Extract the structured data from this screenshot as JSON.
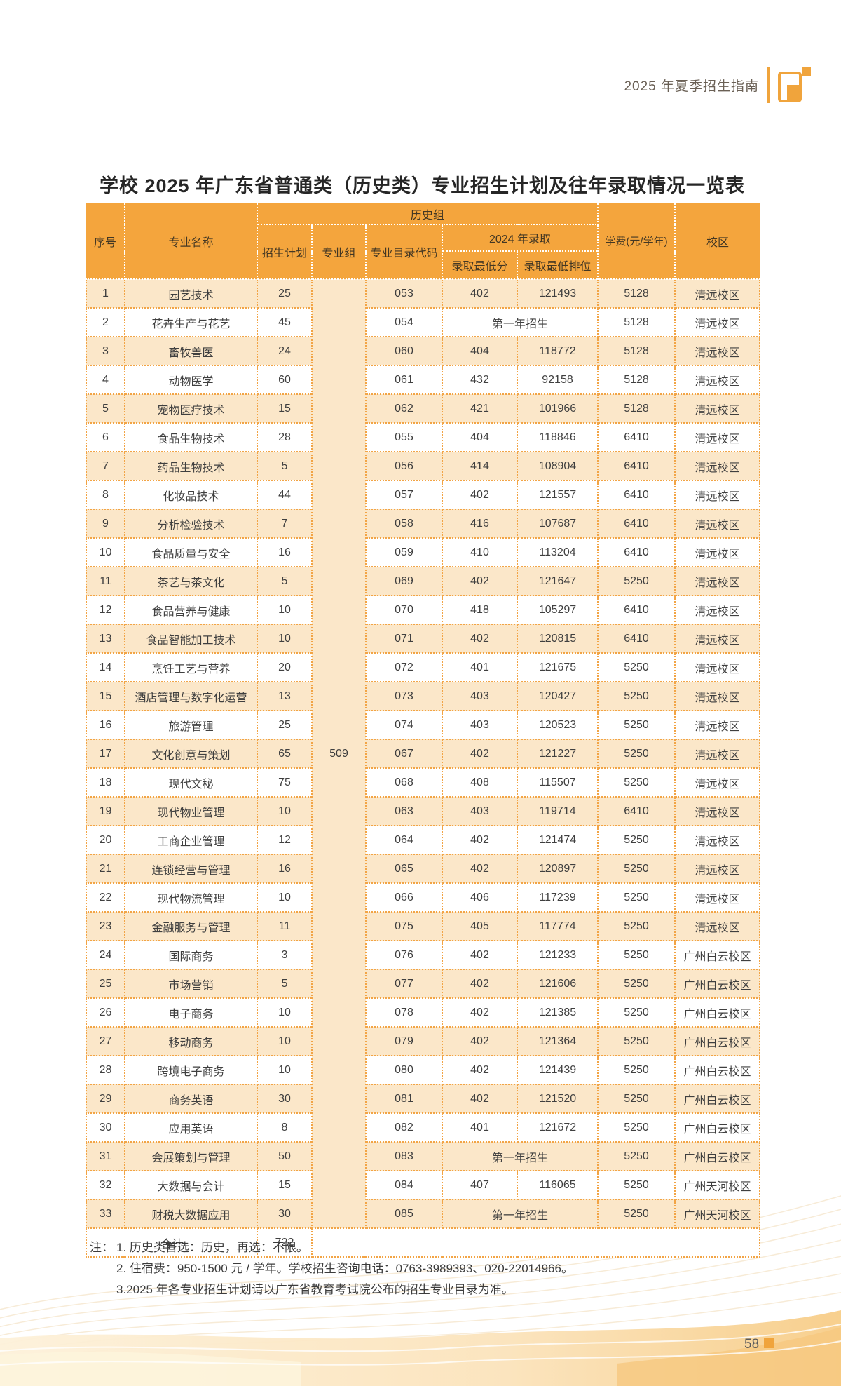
{
  "page_header": {
    "guide_label": "2025 年夏季招生指南"
  },
  "title": "学校 2025 年广东省普通类（历史类）专业招生计划及往年录取情况一览表",
  "colors": {
    "accent_orange": "#F4A53D",
    "row_cream": "#FBE7C9",
    "border_orange": "#F2A445"
  },
  "table": {
    "headers": {
      "no": "序号",
      "major": "专业名称",
      "group": "历史组",
      "plan": "招生计划",
      "major_group": "专业组",
      "catalog_code": "专业目录代码",
      "admission_2024": "2024 年录取",
      "min_score": "录取最低分",
      "min_rank": "录取最低排位",
      "tuition": "学费(元/学年)",
      "campus": "校区"
    },
    "major_group_value": "509",
    "rows": [
      {
        "no": "1",
        "major": "园艺技术",
        "plan": "25",
        "code": "053",
        "score": "402",
        "rank": "121493",
        "tuition": "5128",
        "campus": "清远校区"
      },
      {
        "no": "2",
        "major": "花卉生产与花艺",
        "plan": "45",
        "code": "054",
        "score": "第一年招生",
        "rank": "",
        "first_year": true,
        "tuition": "5128",
        "campus": "清远校区"
      },
      {
        "no": "3",
        "major": "畜牧兽医",
        "plan": "24",
        "code": "060",
        "score": "404",
        "rank": "118772",
        "tuition": "5128",
        "campus": "清远校区"
      },
      {
        "no": "4",
        "major": "动物医学",
        "plan": "60",
        "code": "061",
        "score": "432",
        "rank": "92158",
        "tuition": "5128",
        "campus": "清远校区"
      },
      {
        "no": "5",
        "major": "宠物医疗技术",
        "plan": "15",
        "code": "062",
        "score": "421",
        "rank": "101966",
        "tuition": "5128",
        "campus": "清远校区"
      },
      {
        "no": "6",
        "major": "食品生物技术",
        "plan": "28",
        "code": "055",
        "score": "404",
        "rank": "118846",
        "tuition": "6410",
        "campus": "清远校区"
      },
      {
        "no": "7",
        "major": "药品生物技术",
        "plan": "5",
        "code": "056",
        "score": "414",
        "rank": "108904",
        "tuition": "6410",
        "campus": "清远校区"
      },
      {
        "no": "8",
        "major": "化妆品技术",
        "plan": "44",
        "code": "057",
        "score": "402",
        "rank": "121557",
        "tuition": "6410",
        "campus": "清远校区"
      },
      {
        "no": "9",
        "major": "分析检验技术",
        "plan": "7",
        "code": "058",
        "score": "416",
        "rank": "107687",
        "tuition": "6410",
        "campus": "清远校区"
      },
      {
        "no": "10",
        "major": "食品质量与安全",
        "plan": "16",
        "code": "059",
        "score": "410",
        "rank": "113204",
        "tuition": "6410",
        "campus": "清远校区"
      },
      {
        "no": "11",
        "major": "茶艺与茶文化",
        "plan": "5",
        "code": "069",
        "score": "402",
        "rank": "121647",
        "tuition": "5250",
        "campus": "清远校区"
      },
      {
        "no": "12",
        "major": "食品营养与健康",
        "plan": "10",
        "code": "070",
        "score": "418",
        "rank": "105297",
        "tuition": "6410",
        "campus": "清远校区"
      },
      {
        "no": "13",
        "major": "食品智能加工技术",
        "plan": "10",
        "code": "071",
        "score": "402",
        "rank": "120815",
        "tuition": "6410",
        "campus": "清远校区"
      },
      {
        "no": "14",
        "major": "烹饪工艺与营养",
        "plan": "20",
        "code": "072",
        "score": "401",
        "rank": "121675",
        "tuition": "5250",
        "campus": "清远校区"
      },
      {
        "no": "15",
        "major": "酒店管理与数字化运营",
        "plan": "13",
        "code": "073",
        "score": "403",
        "rank": "120427",
        "tuition": "5250",
        "campus": "清远校区"
      },
      {
        "no": "16",
        "major": "旅游管理",
        "plan": "25",
        "code": "074",
        "score": "403",
        "rank": "120523",
        "tuition": "5250",
        "campus": "清远校区"
      },
      {
        "no": "17",
        "major": "文化创意与策划",
        "plan": "65",
        "code": "067",
        "score": "402",
        "rank": "121227",
        "tuition": "5250",
        "campus": "清远校区"
      },
      {
        "no": "18",
        "major": "现代文秘",
        "plan": "75",
        "code": "068",
        "score": "408",
        "rank": "115507",
        "tuition": "5250",
        "campus": "清远校区"
      },
      {
        "no": "19",
        "major": "现代物业管理",
        "plan": "10",
        "code": "063",
        "score": "403",
        "rank": "119714",
        "tuition": "6410",
        "campus": "清远校区"
      },
      {
        "no": "20",
        "major": "工商企业管理",
        "plan": "12",
        "code": "064",
        "score": "402",
        "rank": "121474",
        "tuition": "5250",
        "campus": "清远校区"
      },
      {
        "no": "21",
        "major": "连锁经营与管理",
        "plan": "16",
        "code": "065",
        "score": "402",
        "rank": "120897",
        "tuition": "5250",
        "campus": "清远校区"
      },
      {
        "no": "22",
        "major": "现代物流管理",
        "plan": "10",
        "code": "066",
        "score": "406",
        "rank": "117239",
        "tuition": "5250",
        "campus": "清远校区"
      },
      {
        "no": "23",
        "major": "金融服务与管理",
        "plan": "11",
        "code": "075",
        "score": "405",
        "rank": "117774",
        "tuition": "5250",
        "campus": "清远校区"
      },
      {
        "no": "24",
        "major": "国际商务",
        "plan": "3",
        "code": "076",
        "score": "402",
        "rank": "121233",
        "tuition": "5250",
        "campus": "广州白云校区"
      },
      {
        "no": "25",
        "major": "市场营销",
        "plan": "5",
        "code": "077",
        "score": "402",
        "rank": "121606",
        "tuition": "5250",
        "campus": "广州白云校区"
      },
      {
        "no": "26",
        "major": "电子商务",
        "plan": "10",
        "code": "078",
        "score": "402",
        "rank": "121385",
        "tuition": "5250",
        "campus": "广州白云校区"
      },
      {
        "no": "27",
        "major": "移动商务",
        "plan": "10",
        "code": "079",
        "score": "402",
        "rank": "121364",
        "tuition": "5250",
        "campus": "广州白云校区"
      },
      {
        "no": "28",
        "major": "跨境电子商务",
        "plan": "10",
        "code": "080",
        "score": "402",
        "rank": "121439",
        "tuition": "5250",
        "campus": "广州白云校区"
      },
      {
        "no": "29",
        "major": "商务英语",
        "plan": "30",
        "code": "081",
        "score": "402",
        "rank": "121520",
        "tuition": "5250",
        "campus": "广州白云校区"
      },
      {
        "no": "30",
        "major": "应用英语",
        "plan": "8",
        "code": "082",
        "score": "401",
        "rank": "121672",
        "tuition": "5250",
        "campus": "广州白云校区"
      },
      {
        "no": "31",
        "major": "会展策划与管理",
        "plan": "50",
        "code": "083",
        "score": "第一年招生",
        "rank": "",
        "first_year": true,
        "tuition": "5250",
        "campus": "广州白云校区"
      },
      {
        "no": "32",
        "major": "大数据与会计",
        "plan": "15",
        "code": "084",
        "score": "407",
        "rank": "116065",
        "tuition": "5250",
        "campus": "广州天河校区"
      },
      {
        "no": "33",
        "major": "财税大数据应用",
        "plan": "30",
        "code": "085",
        "score": "第一年招生",
        "rank": "",
        "first_year": true,
        "tuition": "5250",
        "campus": "广州天河校区"
      }
    ],
    "total": {
      "label": "合计",
      "plan": "722"
    }
  },
  "notes": {
    "prefix": "注：",
    "items": [
      "1. 历史类首选：历史，再选：不限。",
      "2. 住宿费：950-1500 元 / 学年。学校招生咨询电话：0763-3989393、020-22014966。",
      "3.2025 年各专业招生计划请以广东省教育考试院公布的招生专业目录为准。"
    ]
  },
  "page_number": "58"
}
